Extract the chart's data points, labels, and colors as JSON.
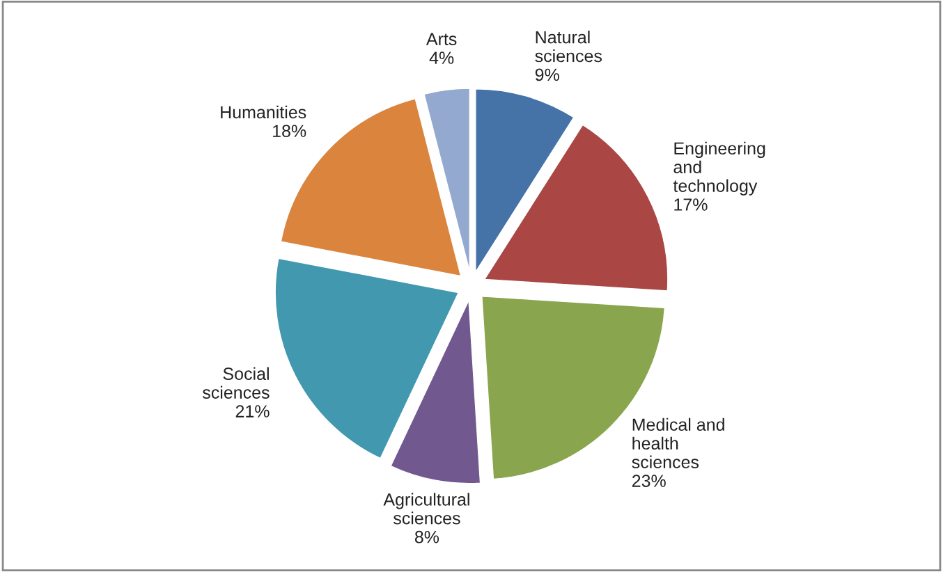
{
  "chart_data": {
    "type": "pie",
    "categories": [
      "Natural\nsciences",
      "Engineering\nand\ntechnology",
      "Medical and\nhealth\nsciences",
      "Agricultural\nsciences",
      "Social\nsciences",
      "Humanities",
      "Arts"
    ],
    "values": [
      9,
      17,
      23,
      8,
      21,
      18,
      4
    ],
    "value_labels": [
      "9%",
      "17%",
      "23%",
      "8%",
      "21%",
      "18%",
      "4%"
    ],
    "colors": [
      "#4572a7",
      "#aa4643",
      "#89a54e",
      "#71588f",
      "#4198af",
      "#db843d",
      "#93a9cf"
    ],
    "legend": false
  }
}
